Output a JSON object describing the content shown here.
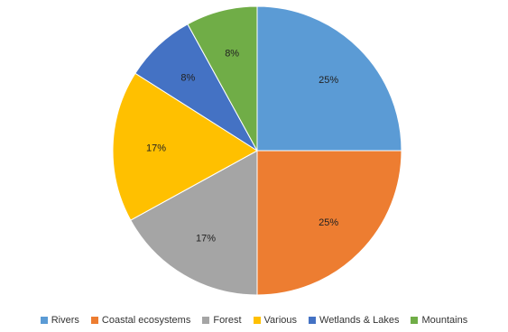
{
  "chart_data": {
    "type": "pie",
    "categories": [
      "Rivers",
      "Coastal ecosystems",
      "Forest",
      "Various",
      "Wetlands & Lakes",
      "Mountains"
    ],
    "values": [
      25,
      25,
      17,
      17,
      8,
      8
    ],
    "labels": [
      "25%",
      "25%",
      "17%",
      "17%",
      "8%",
      "8%"
    ],
    "colors": [
      "#5B9BD5",
      "#ED7D31",
      "#A5A5A5",
      "#FFC000",
      "#4472C4",
      "#70AD47"
    ],
    "legend_position": "bottom",
    "title": ""
  }
}
